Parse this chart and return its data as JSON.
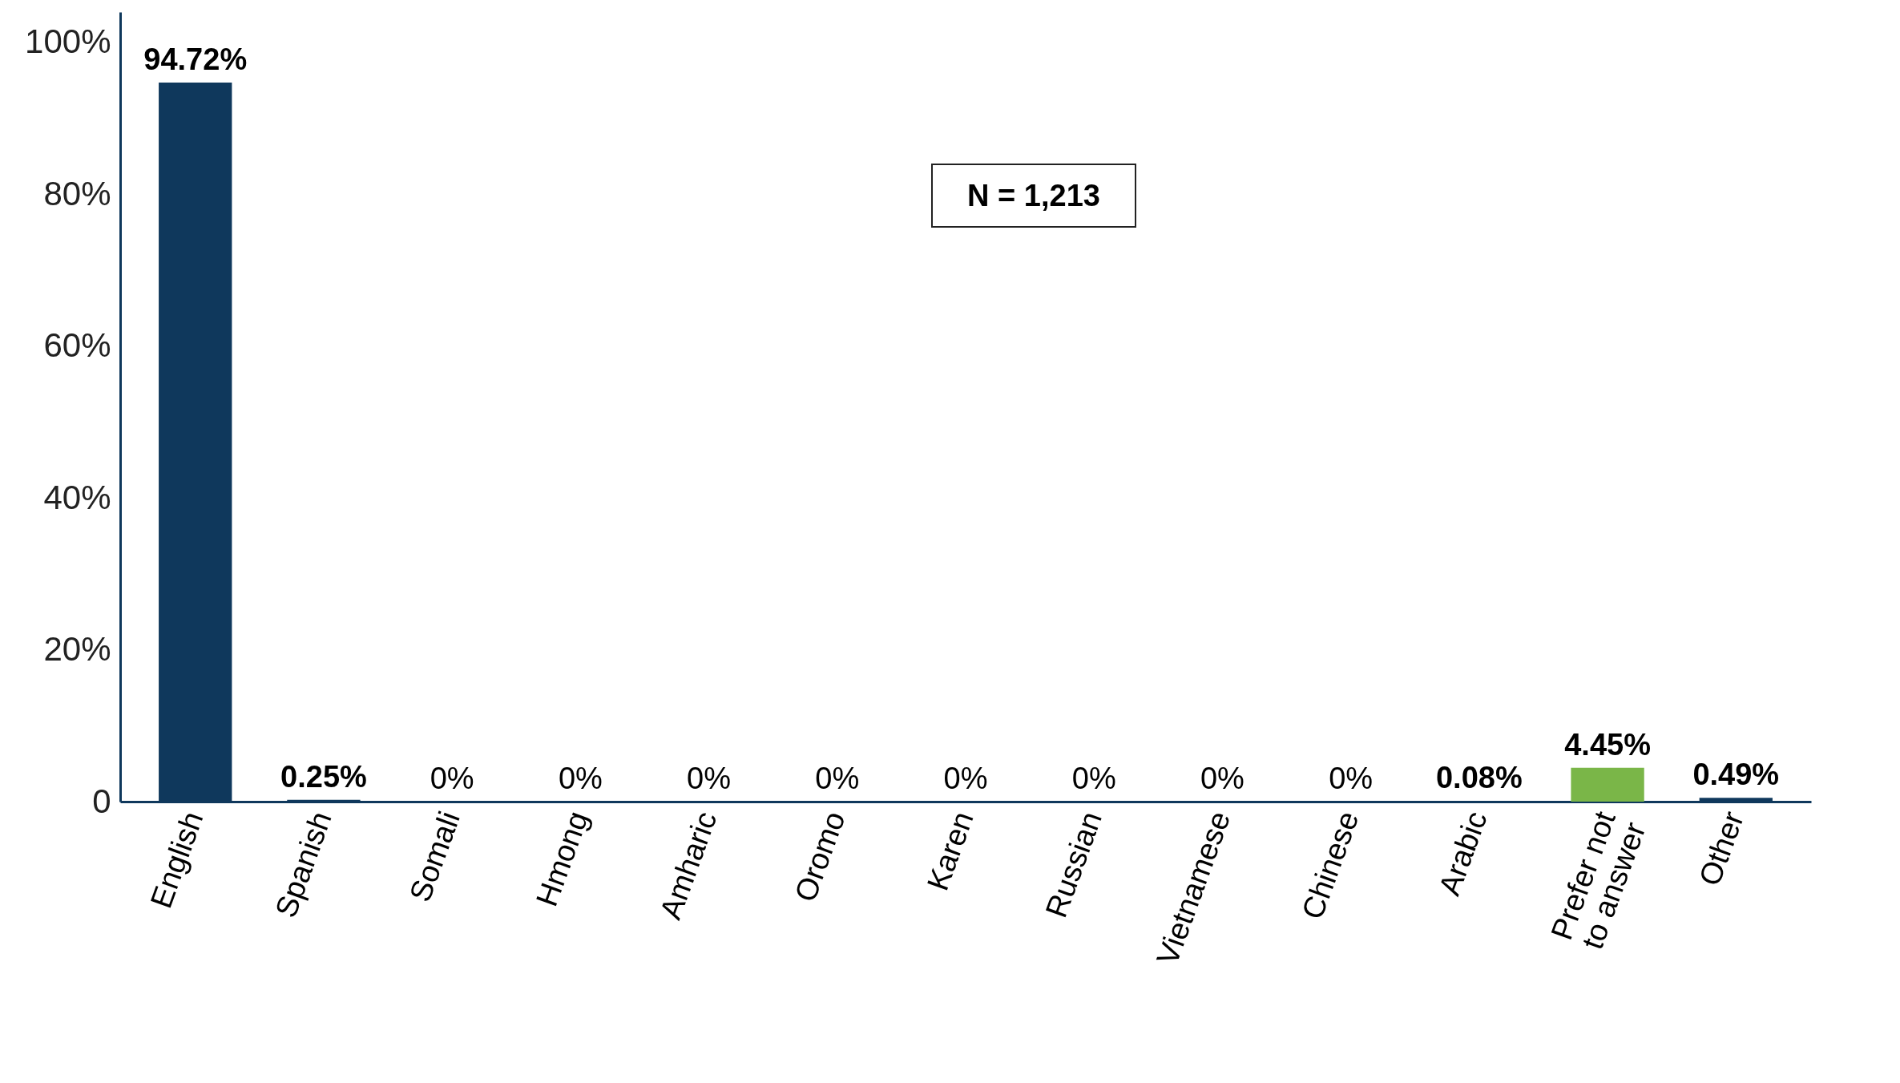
{
  "chart_data": {
    "type": "bar",
    "categories": [
      "English",
      "Spanish",
      "Somali",
      "Hmong",
      "Amharic",
      "Oromo",
      "Karen",
      "Russian",
      "Vietnamese",
      "Chinese",
      "Arabic",
      "Prefer not to answer",
      "Other"
    ],
    "values": [
      94.72,
      0.25,
      0,
      0,
      0,
      0,
      0,
      0,
      0,
      0,
      0.08,
      4.45,
      0.49
    ],
    "value_labels": [
      "94.72%",
      "0.25%",
      "0%",
      "0%",
      "0%",
      "0%",
      "0%",
      "0%",
      "0%",
      "0%",
      "0.08%",
      "4.45%",
      "0.49%"
    ],
    "colors": [
      "#0f385c",
      "#0f385c",
      "#0f385c",
      "#0f385c",
      "#0f385c",
      "#0f385c",
      "#0f385c",
      "#0f385c",
      "#0f385c",
      "#0f385c",
      "#0f385c",
      "#7ab648",
      "#0f385c"
    ],
    "ylim": [
      0,
      104
    ],
    "yticks": [
      {
        "value": 0,
        "label": "0"
      },
      {
        "value": 20,
        "label": "20%"
      },
      {
        "value": 40,
        "label": "40%"
      },
      {
        "value": 60,
        "label": "60%"
      },
      {
        "value": 80,
        "label": "80%"
      },
      {
        "value": 100,
        "label": "100%"
      }
    ],
    "annotations": [
      "N = 1,213"
    ],
    "grid": false
  }
}
